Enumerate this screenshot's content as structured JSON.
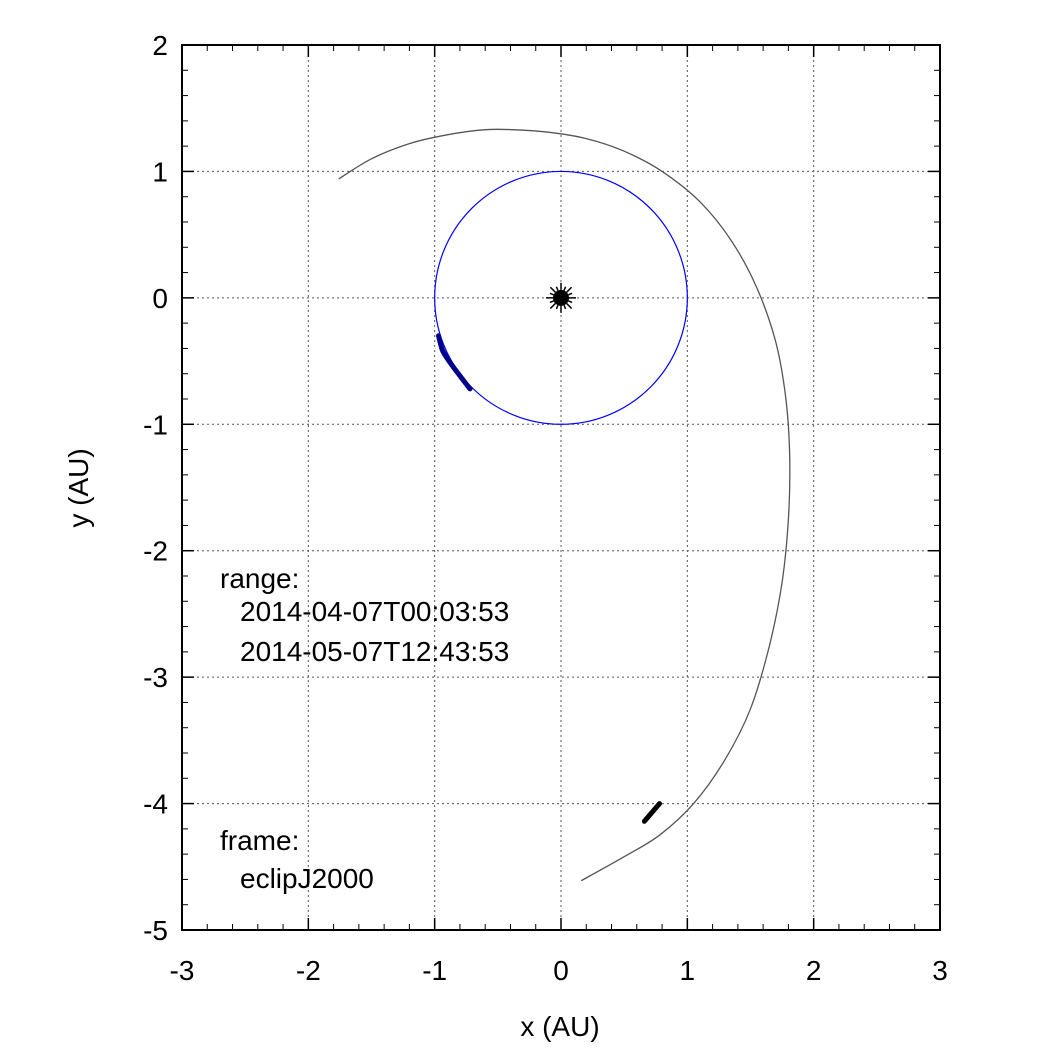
{
  "chart_data": {
    "type": "line",
    "xlabel": "x (AU)",
    "ylabel": "y (AU)",
    "xlim": [
      -3,
      3
    ],
    "ylim": [
      -5,
      2
    ],
    "x_ticks": [
      -3,
      -2,
      -1,
      0,
      1,
      2,
      3
    ],
    "y_ticks": [
      -5,
      -4,
      -3,
      -2,
      -1,
      0,
      1,
      2
    ],
    "x_tick_labels": [
      "-3",
      "-2",
      "-1",
      "0",
      "1",
      "2",
      "3"
    ],
    "y_tick_labels": [
      "-5",
      "-4",
      "-3",
      "-2",
      "-1",
      "0",
      "1",
      "2"
    ],
    "grid": true,
    "sun": {
      "x": 0,
      "y": 0
    },
    "series": [
      {
        "kind": "earth-orbit",
        "color": "#0000ff",
        "center": [
          0,
          0
        ],
        "radius": 1.0
      },
      {
        "kind": "earth-range",
        "color": "#00008b",
        "x": [
          -0.97,
          -0.94,
          -0.9,
          -0.85,
          -0.79,
          -0.72
        ],
        "y": [
          -0.3,
          -0.41,
          -0.48,
          -0.55,
          -0.63,
          -0.72
        ]
      },
      {
        "kind": "spacecraft-trajectory",
        "color": "#555555",
        "x": [
          -1.76,
          -1.5,
          -1.2,
          -0.9,
          -0.6,
          -0.38,
          -0.1,
          0.2,
          0.5,
          0.8,
          1.1,
          1.35,
          1.55,
          1.7,
          1.78,
          1.81,
          1.8,
          1.75,
          1.65,
          1.5,
          1.3,
          1.05,
          0.78,
          0.5,
          0.16
        ],
        "y": [
          0.94,
          1.1,
          1.22,
          1.29,
          1.33,
          1.33,
          1.31,
          1.26,
          1.16,
          1.0,
          0.76,
          0.45,
          0.08,
          -0.35,
          -0.8,
          -1.25,
          -1.75,
          -2.25,
          -2.75,
          -3.25,
          -3.65,
          -4.0,
          -4.25,
          -4.42,
          -4.61
        ]
      },
      {
        "kind": "spacecraft-range",
        "color": "#000000",
        "x": [
          0.66,
          0.78
        ],
        "y": [
          -4.14,
          -4.0
        ]
      }
    ],
    "annotations": {
      "range_label": "range:",
      "range_start": "2014-04-07T00:03:53",
      "range_end": "2014-05-07T12:43:53",
      "frame_label": "frame:",
      "frame_value": "eclipJ2000"
    }
  }
}
